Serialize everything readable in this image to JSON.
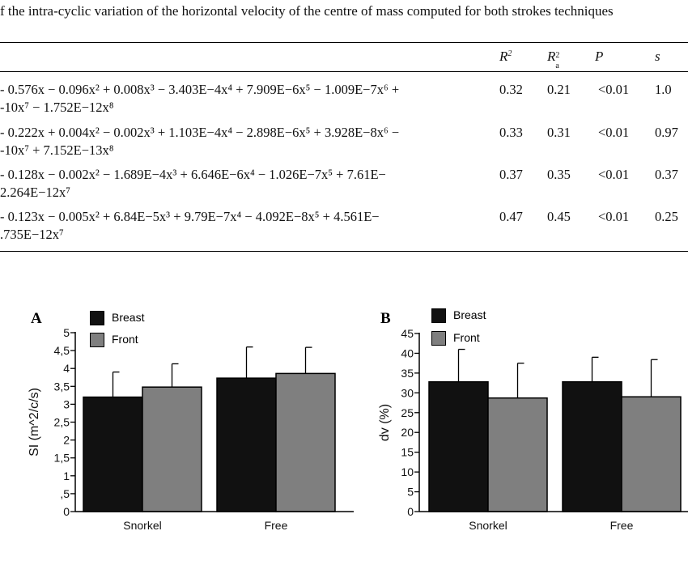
{
  "caption": "f the intra-cyclic variation of the horizontal velocity of the centre of mass computed for both strokes techniques",
  "table": {
    "headers": {
      "r2": "R",
      "r2_sup": "2",
      "ra2": "R",
      "ra2_sup": "2",
      "ra2_sub": "a",
      "p": "P",
      "s": "s"
    },
    "rows": [
      {
        "eq_line1": "- 0.576x − 0.096x² + 0.008x³ − 3.403E−4x⁴ + 7.909E−6x⁵ − 1.009E−7x⁶ +",
        "eq_line2": "-10x⁷ − 1.752E−12x⁸",
        "r2": "0.32",
        "ra2": "0.21",
        "p": "<0.01",
        "s": "1.0"
      },
      {
        "eq_line1": "- 0.222x + 0.004x² − 0.002x³ + 1.103E−4x⁴ − 2.898E−6x⁵ + 3.928E−8x⁶ −",
        "eq_line2": "-10x⁷ + 7.152E−13x⁸",
        "r2": "0.33",
        "ra2": "0.31",
        "p": "<0.01",
        "s": "0.97"
      },
      {
        "eq_line1": "- 0.128x − 0.002x² − 1.689E−4x³ + 6.646E−6x⁴ − 1.026E−7x⁵ + 7.61E−",
        "eq_line2": "2.264E−12x⁷",
        "r2": "0.37",
        "ra2": "0.35",
        "p": "<0.01",
        "s": "0.37"
      },
      {
        "eq_line1": "- 0.123x − 0.005x² + 6.84E−5x³ + 9.79E−7x⁴ − 4.092E−8x⁵ + 4.561E−",
        "eq_line2": ".735E−12x⁷",
        "r2": "0.47",
        "ra2": "0.45",
        "p": "<0.01",
        "s": "0.25"
      }
    ]
  },
  "panels": {
    "A": {
      "letter": "A"
    },
    "B": {
      "letter": "B"
    }
  },
  "colors": {
    "breast": "#111111",
    "front": "#7f7f7f"
  },
  "chart_data": [
    {
      "type": "bar",
      "panel": "A",
      "ylabel": "SI (m^2/c/s)",
      "xlabel": "",
      "categories": [
        "Snorkel",
        "Free"
      ],
      "ylim": [
        0,
        5
      ],
      "yticks": [
        "0",
        ",5",
        "1",
        "1,5",
        "2",
        "2,5",
        "3",
        "3,5",
        "4",
        "4,5",
        "5"
      ],
      "series": [
        {
          "name": "Breast",
          "values": [
            3.2,
            3.73
          ],
          "error": [
            0.7,
            0.87
          ]
        },
        {
          "name": "Front",
          "values": [
            3.48,
            3.86
          ],
          "error": [
            0.65,
            0.73
          ]
        }
      ],
      "legend_position": "top-left",
      "grid": false
    },
    {
      "type": "bar",
      "panel": "B",
      "ylabel": "dv (%)",
      "xlabel": "",
      "categories": [
        "Snorkel",
        "Free"
      ],
      "ylim": [
        0,
        45
      ],
      "yticks": [
        "0",
        "5",
        "10",
        "15",
        "20",
        "25",
        "30",
        "35",
        "40",
        "45"
      ],
      "series": [
        {
          "name": "Breast",
          "values": [
            32.8,
            32.8
          ],
          "error": [
            8.2,
            6.2
          ]
        },
        {
          "name": "Front",
          "values": [
            28.7,
            29.0
          ],
          "error": [
            8.8,
            9.4
          ]
        }
      ],
      "legend_position": "top-left",
      "grid": false
    }
  ]
}
